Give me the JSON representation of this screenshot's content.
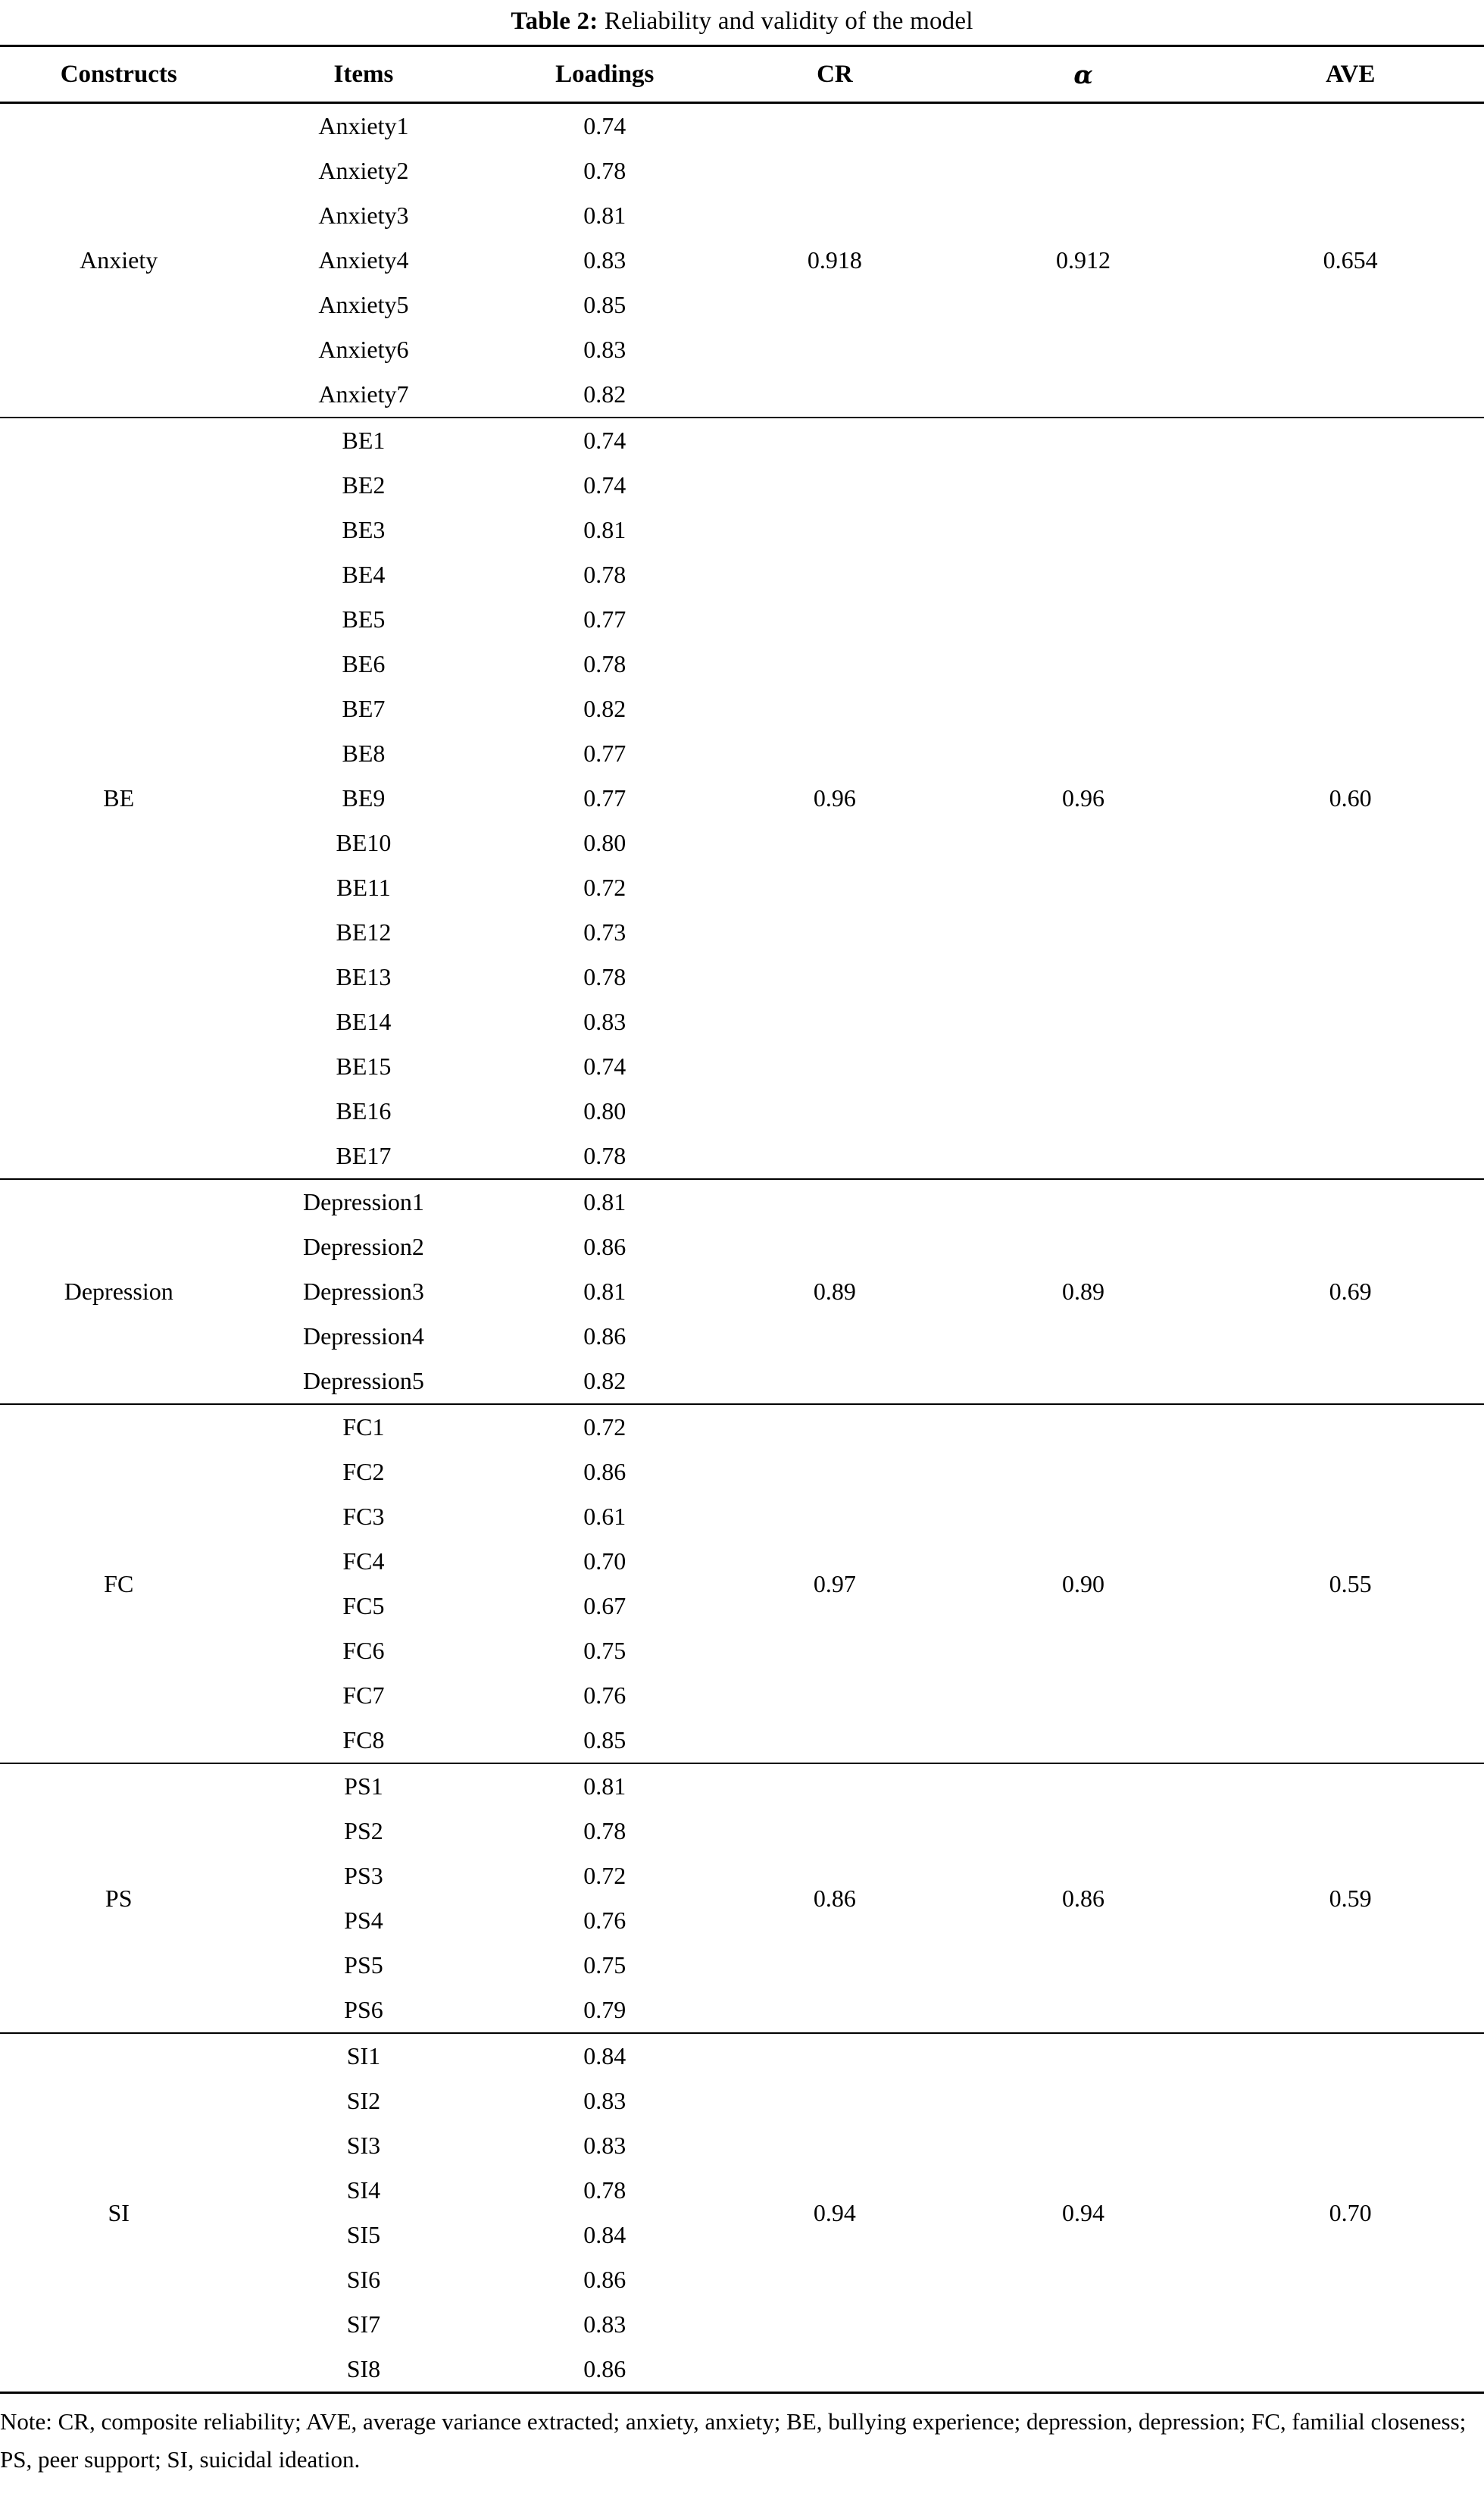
{
  "title": {
    "label": "Table 2:",
    "text": " Reliability and validity of the model"
  },
  "table": {
    "columns": [
      "Constructs",
      "Items",
      "Loadings",
      "CR",
      "α",
      "AVE"
    ],
    "sections": [
      {
        "construct": "Anxiety",
        "cr": "0.918",
        "alpha": "0.912",
        "ave": "0.654",
        "items": [
          {
            "item": "Anxiety1",
            "loading": "0.74"
          },
          {
            "item": "Anxiety2",
            "loading": "0.78"
          },
          {
            "item": "Anxiety3",
            "loading": "0.81"
          },
          {
            "item": "Anxiety4",
            "loading": "0.83"
          },
          {
            "item": "Anxiety5",
            "loading": "0.85"
          },
          {
            "item": "Anxiety6",
            "loading": "0.83"
          },
          {
            "item": "Anxiety7",
            "loading": "0.82"
          }
        ]
      },
      {
        "construct": "BE",
        "cr": "0.96",
        "alpha": "0.96",
        "ave": "0.60",
        "items": [
          {
            "item": "BE1",
            "loading": "0.74"
          },
          {
            "item": "BE2",
            "loading": "0.74"
          },
          {
            "item": "BE3",
            "loading": "0.81"
          },
          {
            "item": "BE4",
            "loading": "0.78"
          },
          {
            "item": "BE5",
            "loading": "0.77"
          },
          {
            "item": "BE6",
            "loading": "0.78"
          },
          {
            "item": "BE7",
            "loading": "0.82"
          },
          {
            "item": "BE8",
            "loading": "0.77"
          },
          {
            "item": "BE9",
            "loading": "0.77"
          },
          {
            "item": "BE10",
            "loading": "0.80"
          },
          {
            "item": "BE11",
            "loading": "0.72"
          },
          {
            "item": "BE12",
            "loading": "0.73"
          },
          {
            "item": "BE13",
            "loading": "0.78"
          },
          {
            "item": "BE14",
            "loading": "0.83"
          },
          {
            "item": "BE15",
            "loading": "0.74"
          },
          {
            "item": "BE16",
            "loading": "0.80"
          },
          {
            "item": "BE17",
            "loading": "0.78"
          }
        ]
      },
      {
        "construct": "Depression",
        "cr": "0.89",
        "alpha": "0.89",
        "ave": "0.69",
        "items": [
          {
            "item": "Depression1",
            "loading": "0.81"
          },
          {
            "item": "Depression2",
            "loading": "0.86"
          },
          {
            "item": "Depression3",
            "loading": "0.81"
          },
          {
            "item": "Depression4",
            "loading": "0.86"
          },
          {
            "item": "Depression5",
            "loading": "0.82"
          }
        ]
      },
      {
        "construct": "FC",
        "cr": "0.97",
        "alpha": "0.90",
        "ave": "0.55",
        "items": [
          {
            "item": "FC1",
            "loading": "0.72"
          },
          {
            "item": "FC2",
            "loading": "0.86"
          },
          {
            "item": "FC3",
            "loading": "0.61"
          },
          {
            "item": "FC4",
            "loading": "0.70"
          },
          {
            "item": "FC5",
            "loading": "0.67"
          },
          {
            "item": "FC6",
            "loading": "0.75"
          },
          {
            "item": "FC7",
            "loading": "0.76"
          },
          {
            "item": "FC8",
            "loading": "0.85"
          }
        ]
      },
      {
        "construct": "PS",
        "cr": "0.86",
        "alpha": "0.86",
        "ave": "0.59",
        "items": [
          {
            "item": "PS1",
            "loading": "0.81"
          },
          {
            "item": "PS2",
            "loading": "0.78"
          },
          {
            "item": "PS3",
            "loading": "0.72"
          },
          {
            "item": "PS4",
            "loading": "0.76"
          },
          {
            "item": "PS5",
            "loading": "0.75"
          },
          {
            "item": "PS6",
            "loading": "0.79"
          }
        ]
      },
      {
        "construct": "SI",
        "cr": "0.94",
        "alpha": "0.94",
        "ave": "0.70",
        "items": [
          {
            "item": "SI1",
            "loading": "0.84"
          },
          {
            "item": "SI2",
            "loading": "0.83"
          },
          {
            "item": "SI3",
            "loading": "0.83"
          },
          {
            "item": "SI4",
            "loading": "0.78"
          },
          {
            "item": "SI5",
            "loading": "0.84"
          },
          {
            "item": "SI6",
            "loading": "0.86"
          },
          {
            "item": "SI7",
            "loading": "0.83"
          },
          {
            "item": "SI8",
            "loading": "0.86"
          }
        ]
      }
    ]
  },
  "note": "Note: CR, composite reliability; AVE, average variance extracted; anxiety, anxiety; BE, bullying experience; depression, depression; FC, familial closeness; PS, peer support; SI, suicidal ideation.",
  "colors": {
    "background": "#ffffff",
    "text": "#000000",
    "rule": "#000000"
  }
}
